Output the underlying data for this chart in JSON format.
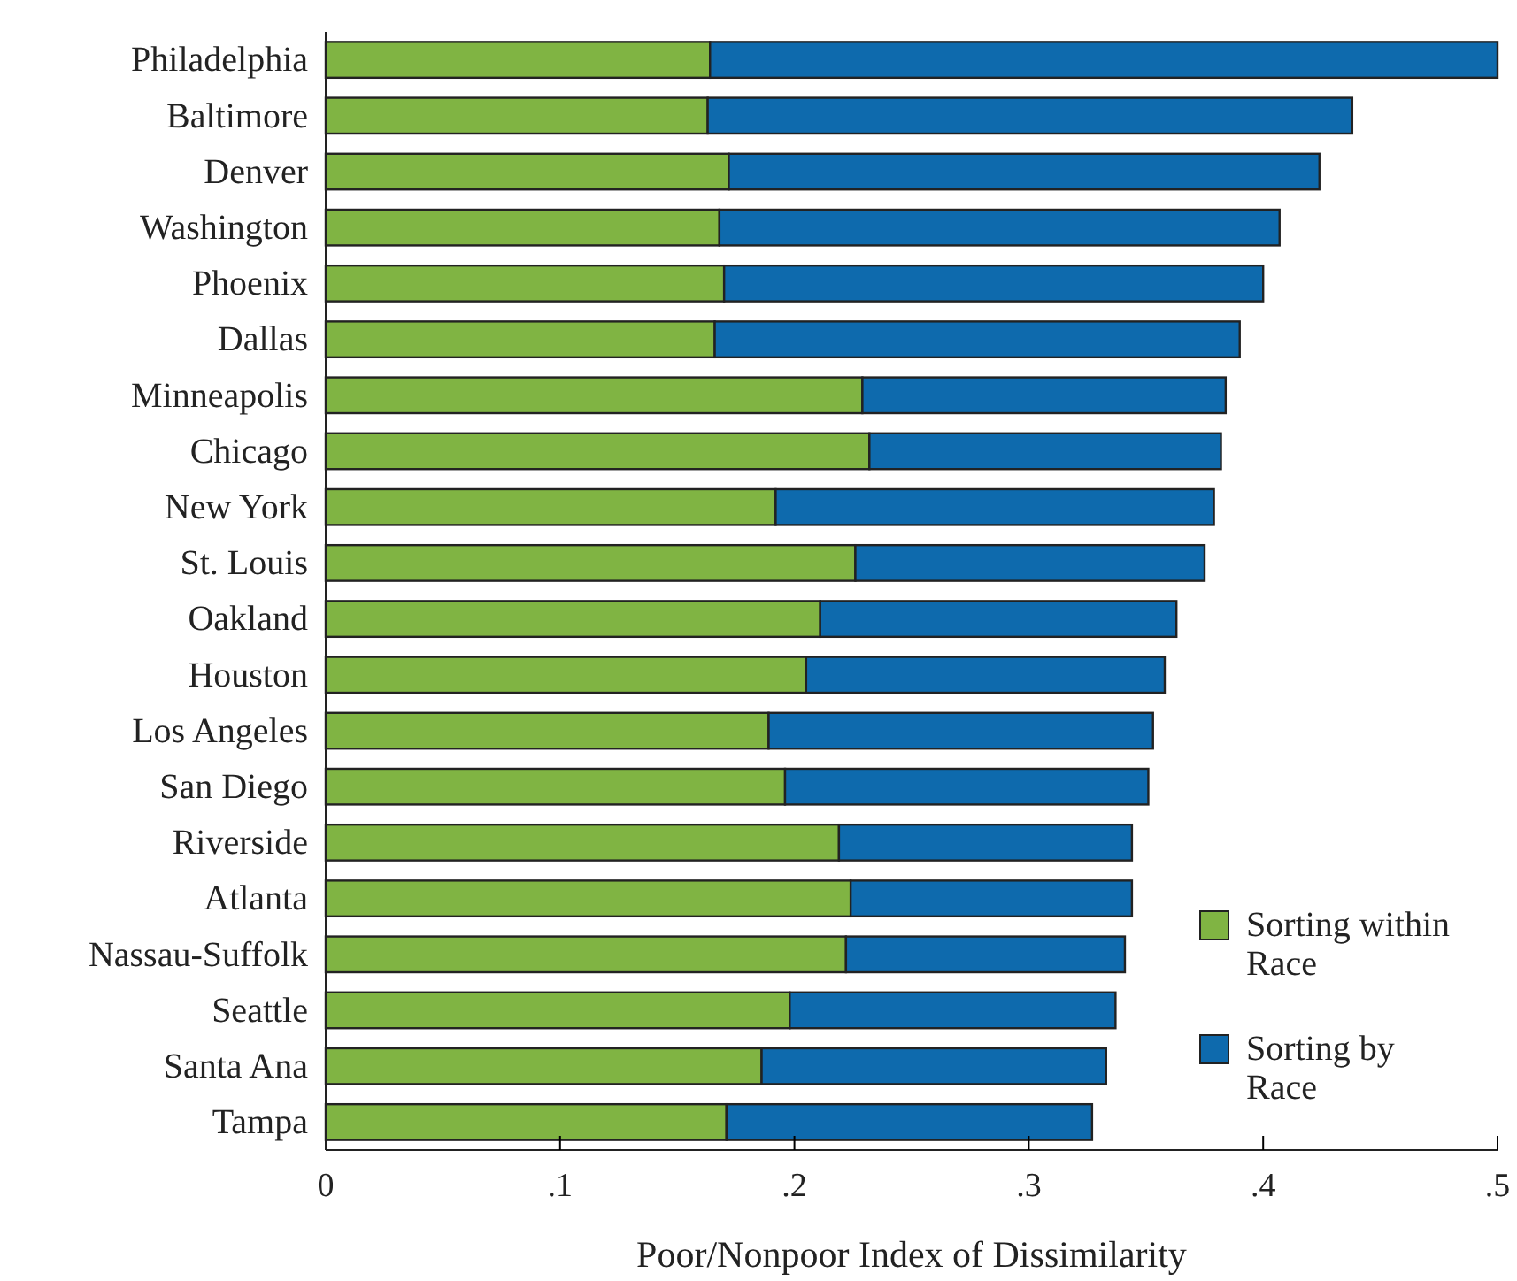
{
  "chart_data": {
    "type": "bar",
    "orientation": "horizontal",
    "stacked": true,
    "xlabel": "Poor/Nonpoor Index of Dissimilarity",
    "categories": [
      "Philadelphia",
      "Baltimore",
      "Denver",
      "Washington",
      "Phoenix",
      "Dallas",
      "Minneapolis",
      "Chicago",
      "New York",
      "St. Louis",
      "Oakland",
      "Houston",
      "Los Angeles",
      "San Diego",
      "Riverside",
      "Atlanta",
      "Nassau-Suffolk",
      "Seattle",
      "Santa Ana",
      "Tampa"
    ],
    "series": [
      {
        "name": "Sorting within Race",
        "color": "#80b443",
        "values": [
          0.164,
          0.163,
          0.172,
          0.168,
          0.17,
          0.166,
          0.229,
          0.232,
          0.192,
          0.226,
          0.211,
          0.205,
          0.189,
          0.196,
          0.219,
          0.224,
          0.222,
          0.198,
          0.186,
          0.171
        ]
      },
      {
        "name": "Sorting by Race",
        "color": "#0e6aad",
        "values": [
          0.336,
          0.275,
          0.252,
          0.239,
          0.23,
          0.224,
          0.155,
          0.15,
          0.187,
          0.149,
          0.152,
          0.153,
          0.164,
          0.155,
          0.125,
          0.12,
          0.119,
          0.139,
          0.147,
          0.156
        ]
      }
    ],
    "xlim": [
      0,
      0.5
    ],
    "xticks": [
      0,
      {
        "value": 0.1,
        "label": ".1"
      },
      {
        "value": 0.2,
        "label": ".2"
      },
      {
        "value": 0.3,
        "label": ".3"
      },
      {
        "value": 0.4,
        "label": ".4"
      },
      {
        "value": 0.5,
        "label": ".5"
      }
    ],
    "grid": false,
    "legend": "bottom right"
  }
}
